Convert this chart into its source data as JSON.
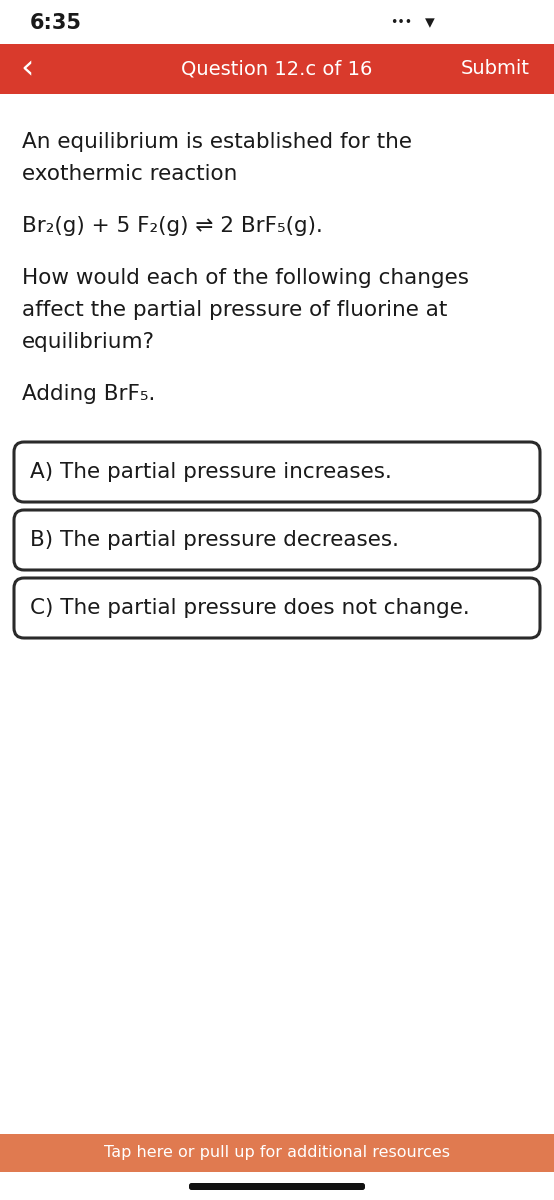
{
  "time_text": "6:35",
  "header_text": "Question 12.c of 16",
  "submit_text": "Submit",
  "back_arrow": "‹",
  "header_bg": "#D93A2C",
  "body_bg": "#FFFFFF",
  "footer_bg": "#E07A50",
  "footer_text": "Tap here or pull up for additional resources",
  "text_color": "#1A1A1A",
  "white_text": "#FFFFFF",
  "para1_line1": "An equilibrium is established for the",
  "para1_line2": "exothermic reaction",
  "equation": "Br₂(g) + 5 F₂(g) ⇌ 2 BrF₅(g).",
  "para2_line1": "How would each of the following changes",
  "para2_line2": "affect the partial pressure of fluorine at",
  "para2_line3": "equilibrium?",
  "scenario": "Adding BrF₅.",
  "options": [
    "A) The partial pressure increases.",
    "B) The partial pressure decreases.",
    "C) The partial pressure does not change."
  ],
  "option_box_color": "#FFFFFF",
  "option_border_color": "#2A2A2A",
  "home_bar_color": "#111111",
  "status_bar_height": 44,
  "header_bar_height": 50,
  "fig_width": 5.54,
  "fig_height": 12.0,
  "dpi": 100
}
